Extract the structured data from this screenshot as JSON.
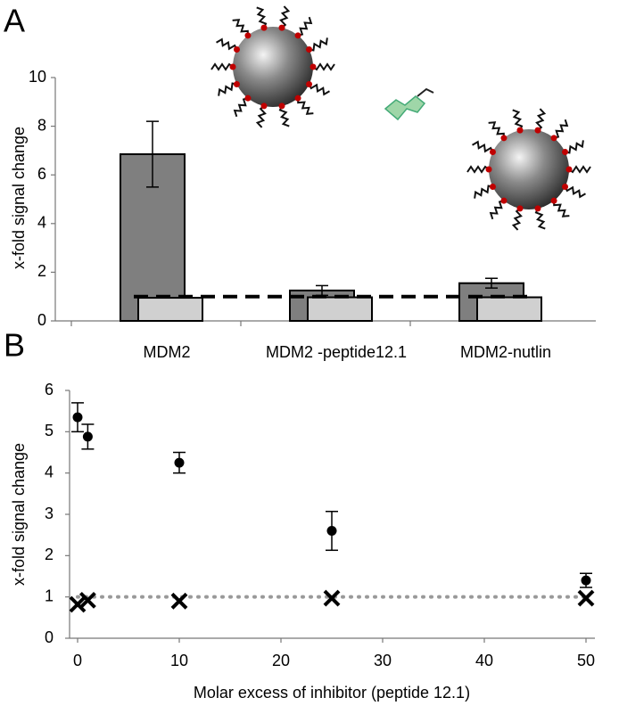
{
  "chart_data": [
    {
      "type": "bar",
      "panel": "A",
      "ylabel": "x-fold signal change",
      "categories": [
        "MDM2",
        "MDM2 -peptide12.1",
        "MDM2-nutlin"
      ],
      "series": [
        {
          "color": "#7f7f7f",
          "values": [
            6.85,
            1.25,
            1.55
          ],
          "errors": [
            1.35,
            0.2,
            0.2
          ]
        },
        {
          "color": "#d0d0d0",
          "values": [
            0.95,
            0.97,
            0.97
          ]
        }
      ],
      "reference_line": 1,
      "ylim": [
        0,
        10
      ],
      "yticks": [
        0,
        2,
        4,
        6,
        8,
        10
      ]
    },
    {
      "type": "scatter",
      "panel": "B",
      "ylabel": "x-fold signal change",
      "xlabel": "Molar excess of inhibitor (peptide 12.1)",
      "series": [
        {
          "marker": "circle",
          "color": "#000000",
          "x": [
            0,
            1,
            10,
            25,
            50
          ],
          "values": [
            5.35,
            4.88,
            4.25,
            2.6,
            1.4
          ],
          "errors": [
            0.35,
            0.3,
            0.25,
            0.47,
            0.17
          ]
        },
        {
          "marker": "cross",
          "color": "#000000",
          "x": [
            0,
            1,
            10,
            25,
            50
          ],
          "values": [
            0.82,
            0.92,
            0.9,
            0.97,
            0.97
          ]
        }
      ],
      "reference_line": 1,
      "xlim": [
        0,
        50
      ],
      "xticks": [
        0,
        10,
        20,
        30,
        40,
        50
      ],
      "ylim": [
        0,
        6
      ],
      "yticks": [
        0,
        1,
        2,
        3,
        4,
        5,
        6
      ]
    }
  ]
}
